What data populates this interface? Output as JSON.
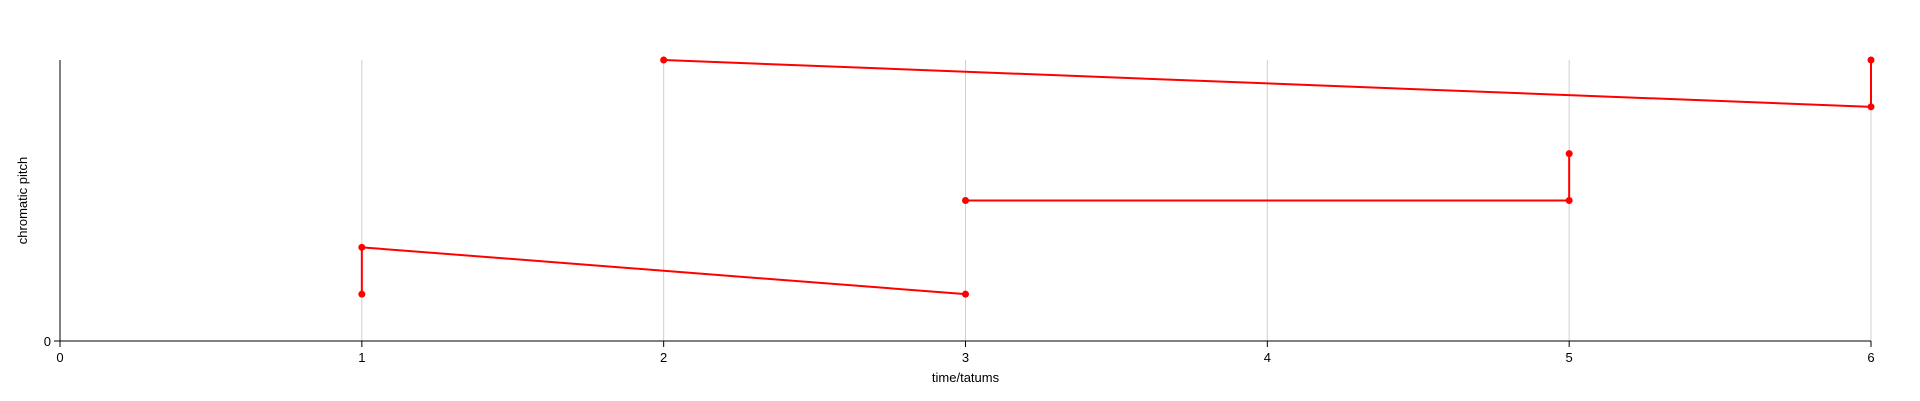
{
  "chart_data": {
    "type": "line",
    "title": "",
    "xlabel": "time/tatums",
    "ylabel": "chromatic pitch",
    "xlim": [
      0,
      6
    ],
    "ylim": [
      0,
      6
    ],
    "x_ticks": [
      0,
      1,
      2,
      3,
      4,
      5,
      6
    ],
    "y_ticks": [
      0
    ],
    "grid": "vertical",
    "legend": "none",
    "color": "#ff0000",
    "series": [
      {
        "values": [
          {
            "x": 1,
            "y": 1
          },
          {
            "x": 1,
            "y": 2
          },
          {
            "x": 3,
            "y": 1
          }
        ]
      },
      {
        "values": [
          {
            "x": 3,
            "y": 3
          },
          {
            "x": 5,
            "y": 3
          },
          {
            "x": 5,
            "y": 4
          }
        ]
      },
      {
        "values": [
          {
            "x": 2,
            "y": 6
          },
          {
            "x": 6,
            "y": 5
          },
          {
            "x": 6,
            "y": 6
          }
        ]
      }
    ]
  }
}
